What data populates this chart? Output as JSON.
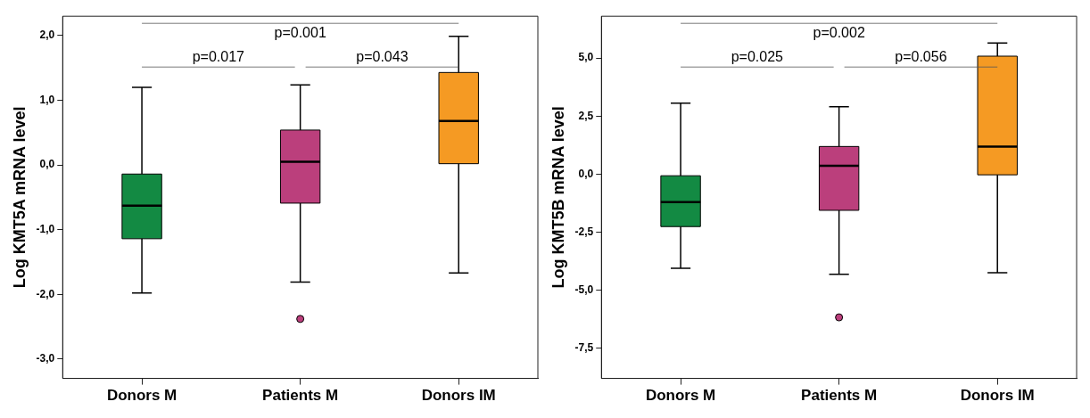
{
  "chart_data": [
    {
      "type": "box",
      "ylabel": "Log KMT5A mRNA level",
      "categories": [
        "Donors M",
        "Patients M",
        "Donors IM"
      ],
      "colors": [
        "#138a43",
        "#bb3f7c",
        "#f59a23"
      ],
      "boxes": [
        {
          "low": -1.98,
          "q1": -1.14,
          "median": -0.63,
          "q3": -0.14,
          "high": 1.2
        },
        {
          "low": -1.81,
          "q1": -0.59,
          "median": 0.05,
          "q3": 0.54,
          "high": 1.24,
          "outliers": [
            -2.38
          ]
        },
        {
          "low": -1.67,
          "q1": 0.02,
          "median": 0.68,
          "q3": 1.43,
          "high": 1.99
        }
      ],
      "ylim": [
        -3.3,
        2.3
      ],
      "yticks": [
        {
          "value": -3,
          "label": "-3,0"
        },
        {
          "value": -2,
          "label": "-2,0"
        },
        {
          "value": -1,
          "label": "-1,0"
        },
        {
          "value": 0,
          "label": "0,0"
        },
        {
          "value": 1,
          "label": "1,0"
        },
        {
          "value": 2,
          "label": "2,0"
        }
      ],
      "annotations": [
        "p=0.001",
        "p=0.017",
        "p=0.043"
      ]
    },
    {
      "type": "box",
      "ylabel": "Log KMT5B mRNA level",
      "categories": [
        "Donors M",
        "Patients M",
        "Donors IM"
      ],
      "colors": [
        "#138a43",
        "#bb3f7c",
        "#f59a23"
      ],
      "boxes": [
        {
          "low": -4.06,
          "q1": -2.26,
          "median": -1.21,
          "q3": -0.07,
          "high": 3.06
        },
        {
          "low": -4.31,
          "q1": -1.56,
          "median": 0.36,
          "q3": 1.19,
          "high": 2.9,
          "outliers": [
            -6.17
          ]
        },
        {
          "low": -4.25,
          "q1": -0.03,
          "median": 1.18,
          "q3": 5.08,
          "high": 5.65
        }
      ],
      "ylim": [
        -8.8,
        6.8
      ],
      "yticks": [
        {
          "value": -7.5,
          "label": "-7,5"
        },
        {
          "value": -5,
          "label": "-5,0"
        },
        {
          "value": -2.5,
          "label": "-2,5"
        },
        {
          "value": 0,
          "label": "0,0"
        },
        {
          "value": 2.5,
          "label": "2,5"
        },
        {
          "value": 5,
          "label": "5,0"
        }
      ],
      "annotations": [
        "p=0.002",
        "p=0.025",
        "p=0.056"
      ]
    }
  ]
}
